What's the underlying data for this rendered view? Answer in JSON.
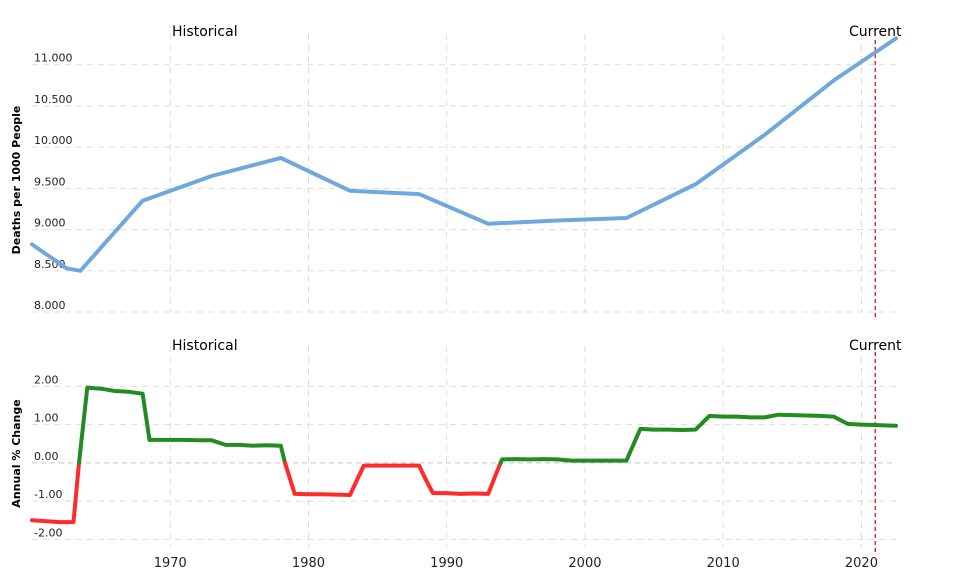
{
  "chart_data": [
    {
      "type": "line",
      "ylabel": "Deaths per 1000 People",
      "annotations": {
        "historical": "Historical",
        "current": "Current",
        "current_marker_x": 2021
      },
      "xlim": [
        1960,
        2022.5
      ],
      "ylim": [
        8.0,
        11.3
      ],
      "yticks": [
        8.0,
        8.5,
        9.0,
        9.5,
        10.0,
        10.5,
        11.0
      ],
      "ytick_labels": [
        "8.000",
        "8.500",
        "9.000",
        "9.500",
        "10.000",
        "10.500",
        "11.000"
      ],
      "grid": true,
      "color": "#6fa8dc",
      "series": [
        {
          "x": [
            1960,
            1962.5,
            1963.5,
            1968,
            1973,
            1978,
            1983,
            1988,
            1993,
            1998,
            2003,
            2008,
            2013,
            2018,
            2021,
            2022.5
          ],
          "values": [
            8.82,
            8.53,
            8.5,
            9.35,
            9.65,
            9.87,
            9.47,
            9.43,
            9.07,
            9.11,
            9.14,
            9.55,
            10.15,
            10.81,
            11.15,
            11.32
          ]
        }
      ]
    },
    {
      "type": "line",
      "ylabel": "Annual % Change",
      "annotations": {
        "historical": "Historical",
        "current": "Current",
        "current_marker_x": 2021
      },
      "xlim": [
        1960,
        2022.5
      ],
      "ylim": [
        -2.2,
        2.9
      ],
      "yticks": [
        -2.0,
        -1.0,
        0.0,
        1.0,
        2.0
      ],
      "ytick_labels": [
        "-2.00",
        "-1.00",
        "0.00",
        "1.00",
        "2.00"
      ],
      "xticks": [
        1970,
        1980,
        1990,
        2000,
        2010,
        2020
      ],
      "xtick_labels": [
        "1970",
        "1980",
        "1990",
        "2000",
        "2010",
        "2020"
      ],
      "grid": true,
      "positive_color": "#228b22",
      "negative_color": "#ff2a2a",
      "series": [
        {
          "x": [
            1960,
            1962,
            1963,
            1963.4,
            1964,
            1965,
            1966,
            1967,
            1968,
            1968.5,
            1969,
            1970,
            1971,
            1972,
            1973,
            1974,
            1975,
            1976,
            1977,
            1978,
            1978.3,
            1979,
            1980,
            1981,
            1982,
            1983,
            1983.5,
            1984,
            1985,
            1986,
            1987,
            1988,
            1988.5,
            1989,
            1990,
            1991,
            1992,
            1993,
            1993.5,
            1994,
            1995,
            1996,
            1997,
            1998,
            1999,
            2000,
            2001,
            2002,
            2003,
            2004,
            2005,
            2006,
            2007,
            2008,
            2009,
            2010,
            2011,
            2012,
            2013,
            2014,
            2015,
            2016,
            2017,
            2018,
            2019,
            2020,
            2021,
            2022.5
          ],
          "values": [
            -1.5,
            -1.55,
            -1.55,
            0.0,
            1.97,
            1.94,
            1.88,
            1.86,
            1.81,
            0.6,
            0.6,
            0.6,
            0.6,
            0.59,
            0.59,
            0.47,
            0.47,
            0.45,
            0.46,
            0.45,
            0.0,
            -0.81,
            -0.82,
            -0.82,
            -0.83,
            -0.84,
            -0.45,
            -0.07,
            -0.07,
            -0.07,
            -0.07,
            -0.07,
            -0.45,
            -0.79,
            -0.79,
            -0.81,
            -0.8,
            -0.81,
            -0.35,
            0.09,
            0.1,
            0.09,
            0.1,
            0.09,
            0.06,
            0.06,
            0.06,
            0.06,
            0.06,
            0.89,
            0.87,
            0.87,
            0.86,
            0.87,
            1.23,
            1.21,
            1.21,
            1.19,
            1.19,
            1.26,
            1.25,
            1.24,
            1.23,
            1.21,
            1.02,
            1.0,
            0.99,
            0.97
          ]
        }
      ]
    }
  ]
}
